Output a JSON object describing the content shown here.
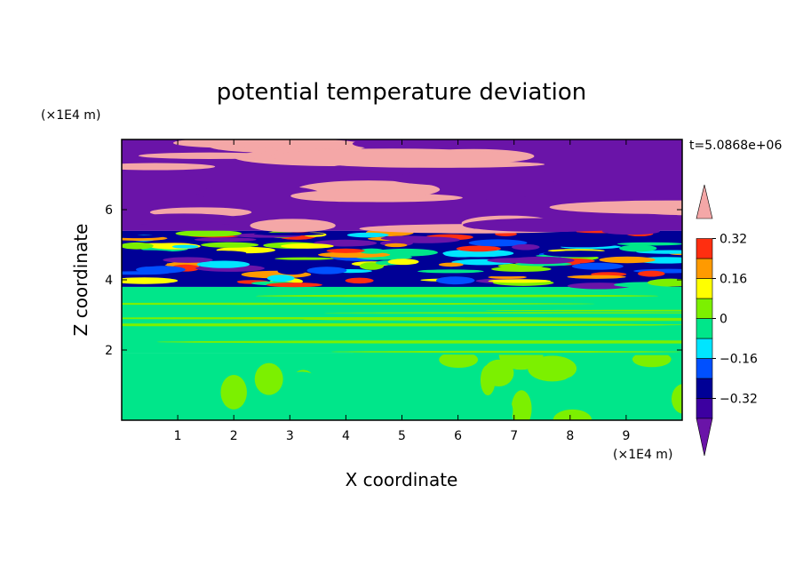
{
  "chart_data": {
    "type": "heatmap",
    "title": "potential temperature deviation",
    "xlabel": "X coordinate",
    "ylabel": "Z coordinate",
    "x_unit": "(×1E4 m)",
    "y_unit": "(×1E4 m)",
    "time_label": "t=5.0868e+06",
    "xlim": [
      0,
      10
    ],
    "ylim": [
      0,
      8
    ],
    "x_ticks": [
      "1",
      "2",
      "3",
      "4",
      "5",
      "6",
      "7",
      "8",
      "9"
    ],
    "y_ticks": [
      "2",
      "4",
      "6"
    ],
    "colorbar": {
      "labels": [
        "0.32",
        "0.16",
        "0",
        "-0.16",
        "-0.32"
      ],
      "levels": [
        -0.4,
        -0.32,
        -0.24,
        -0.16,
        -0.08,
        0,
        0.08,
        0.16,
        0.24,
        0.32,
        0.4
      ],
      "colors": [
        "#6a14a8",
        "#3c00a0",
        "#000096",
        "#0050ff",
        "#00e5ff",
        "#00e68a",
        "#7cf000",
        "#ffff00",
        "#ff9a00",
        "#ff2e10",
        "#f4a7a7"
      ],
      "extend": "both"
    },
    "layers": [
      {
        "z_range": [
          0,
          1.9
        ],
        "pattern": "near-zero mottled",
        "colors": [
          "#00e68a",
          "#7cf000"
        ]
      },
      {
        "z_range": [
          1.9,
          3.8
        ],
        "pattern": "horizontal bands near zero",
        "colors": [
          "#00e68a",
          "#7cf000"
        ]
      },
      {
        "z_range": [
          3.8,
          5.4
        ],
        "pattern": "turbulent mixed",
        "colors": [
          "#000096",
          "#0050ff",
          "#00e5ff",
          "#00e68a",
          "#7cf000",
          "#ffff00",
          "#ff9a00",
          "#ff2e10",
          "#6a14a8"
        ]
      },
      {
        "z_range": [
          5.4,
          8
        ],
        "pattern": "alternating extremes",
        "colors": [
          "#6a14a8",
          "#f4a7a7"
        ]
      }
    ]
  }
}
